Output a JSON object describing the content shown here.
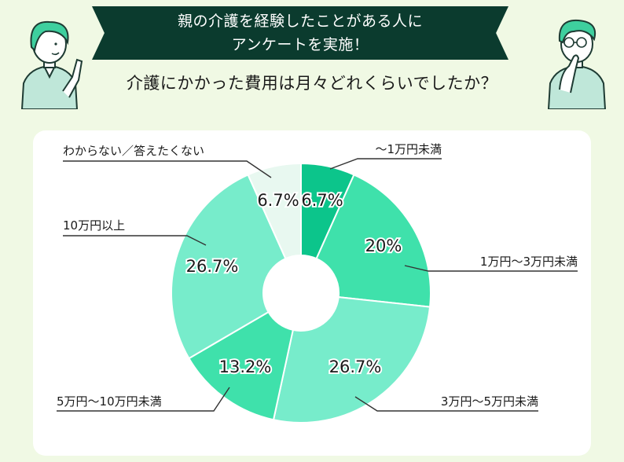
{
  "header": {
    "title_line1": "親の介護を経験したことがある人に",
    "title_line2": "アンケートを実施！",
    "question": "介護にかかった費用は月々どれくらいでしたか？"
  },
  "colors": {
    "background": "#f0f9e4",
    "banner": "#0b3b2e",
    "card": "#ffffff"
  },
  "chart_data": {
    "type": "pie",
    "donut": true,
    "slices": [
      {
        "label": "〜1万円未満",
        "value": 6.7,
        "value_label": "6.7%",
        "color": "#0cc58b"
      },
      {
        "label": "1万円〜3万円未満",
        "value": 20,
        "value_label": "20%",
        "color": "#3fe1ab"
      },
      {
        "label": "3万円〜5万円未満",
        "value": 26.7,
        "value_label": "26.7%",
        "color": "#77eccb"
      },
      {
        "label": "5万円〜10万円未満",
        "value": 13.2,
        "value_label": "13.2%",
        "color": "#3fe1ab"
      },
      {
        "label": "10万円以上",
        "value": 26.7,
        "value_label": "26.7%",
        "color": "#77eccb"
      },
      {
        "label": "わからない／答えたくない",
        "value": 6.7,
        "value_label": "6.7%",
        "color": "#e8f8f0"
      }
    ]
  }
}
